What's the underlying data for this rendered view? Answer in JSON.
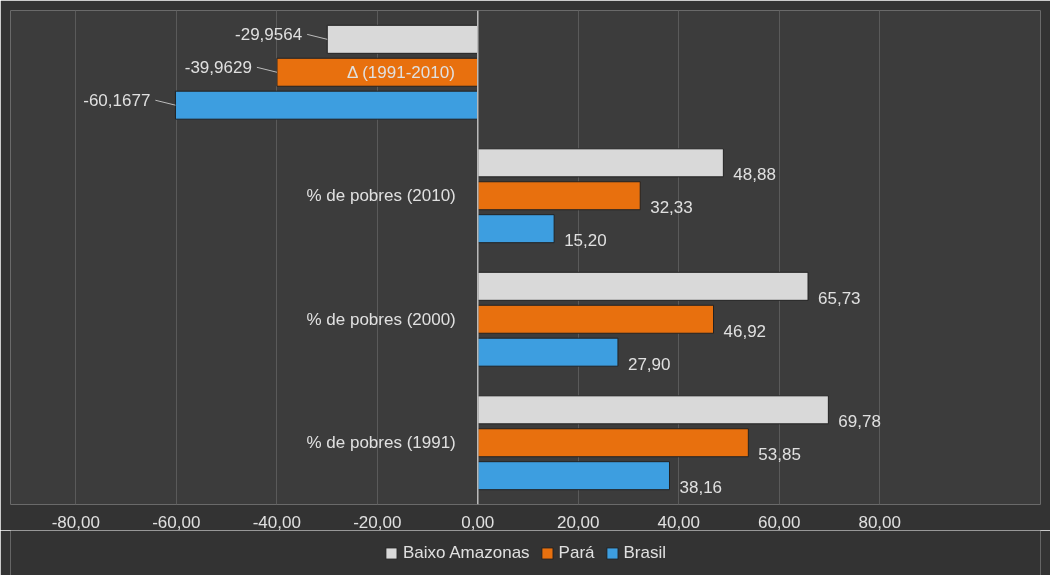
{
  "chart_data": {
    "type": "bar",
    "orientation": "horizontal",
    "categories": [
      "Δ (1991-2010)",
      "% de pobres (2010)",
      "% de pobres (2000)",
      "% de pobres (1991)"
    ],
    "series": [
      {
        "name": "Baixo Amazonas",
        "color": "#d9d9d9",
        "values": [
          -29.9564,
          48.88,
          65.73,
          69.78
        ],
        "value_labels": [
          "-29,9564",
          "48,88",
          "65,73",
          "69,78"
        ]
      },
      {
        "name": "Pará",
        "color": "#e8700e",
        "values": [
          -39.9629,
          32.33,
          46.92,
          53.85
        ],
        "value_labels": [
          "-39,9629",
          "32,33",
          "46,92",
          "53,85"
        ]
      },
      {
        "name": "Brasil",
        "color": "#3d9ee0",
        "values": [
          -60.1677,
          15.2,
          27.9,
          38.16
        ],
        "value_labels": [
          "-60,1677",
          "15,20",
          "27,90",
          "38,16"
        ]
      }
    ],
    "xlim": [
      -93,
      112
    ],
    "xticks": [
      {
        "value": -80,
        "label": "-80,00"
      },
      {
        "value": -60,
        "label": "-60,00"
      },
      {
        "value": -40,
        "label": "-40,00"
      },
      {
        "value": -20,
        "label": "-20,00"
      },
      {
        "value": 0,
        "label": "0,00"
      },
      {
        "value": 20,
        "label": "20,00"
      },
      {
        "value": 40,
        "label": "40,00"
      },
      {
        "value": 60,
        "label": "60,00"
      },
      {
        "value": 80,
        "label": "80,00"
      }
    ],
    "grid": "x",
    "legend": "bottom"
  }
}
